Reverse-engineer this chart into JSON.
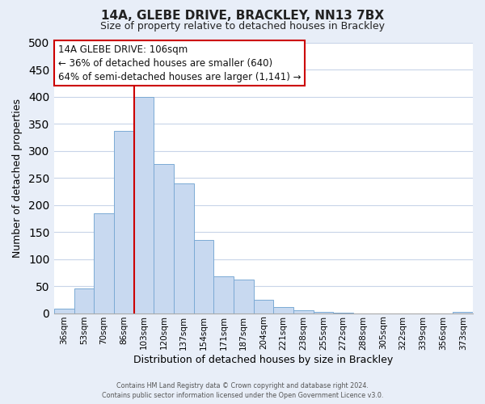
{
  "title": "14A, GLEBE DRIVE, BRACKLEY, NN13 7BX",
  "subtitle": "Size of property relative to detached houses in Brackley",
  "xlabel": "Distribution of detached houses by size in Brackley",
  "ylabel": "Number of detached properties",
  "bar_labels": [
    "36sqm",
    "53sqm",
    "70sqm",
    "86sqm",
    "103sqm",
    "120sqm",
    "137sqm",
    "154sqm",
    "171sqm",
    "187sqm",
    "204sqm",
    "221sqm",
    "238sqm",
    "255sqm",
    "272sqm",
    "288sqm",
    "305sqm",
    "322sqm",
    "339sqm",
    "356sqm",
    "373sqm"
  ],
  "bar_values": [
    8,
    46,
    185,
    337,
    400,
    276,
    240,
    135,
    68,
    62,
    25,
    12,
    5,
    2,
    1,
    0,
    0,
    0,
    0,
    0,
    2
  ],
  "bar_color": "#c8d9f0",
  "bar_edge_color": "#7baad4",
  "vline_x": 3.5,
  "vline_color": "#cc0000",
  "ylim": [
    0,
    500
  ],
  "yticks": [
    0,
    50,
    100,
    150,
    200,
    250,
    300,
    350,
    400,
    450,
    500
  ],
  "annotation_line1": "14A GLEBE DRIVE: 106sqm",
  "annotation_line2": "← 36% of detached houses are smaller (640)",
  "annotation_line3": "64% of semi-detached houses are larger (1,141) →",
  "annotation_box_color": "#cc0000",
  "plot_bg_color": "#ffffff",
  "fig_bg_color": "#e8eef8",
  "grid_color": "#c8d4e8",
  "footer_line1": "Contains HM Land Registry data © Crown copyright and database right 2024.",
  "footer_line2": "Contains public sector information licensed under the Open Government Licence v3.0."
}
